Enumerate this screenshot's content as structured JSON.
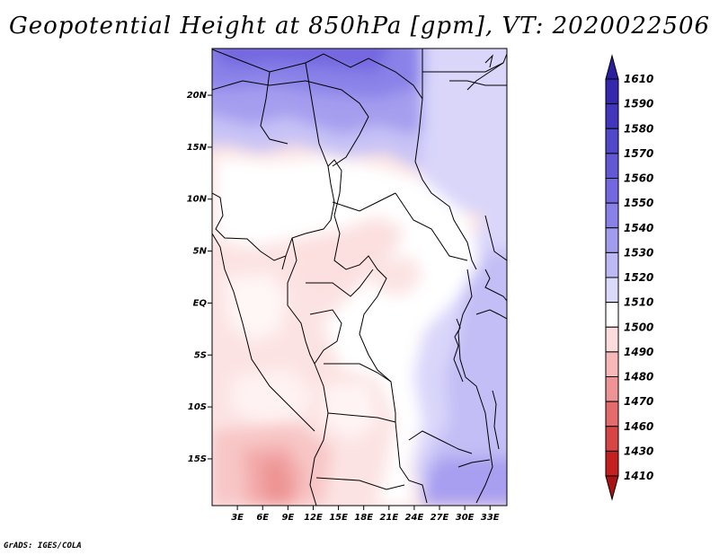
{
  "title": "Geopotential Height at 850hPa [gpm], VT: 2020022506",
  "credit": "GrADS: IGES/COLA",
  "map": {
    "lat_labels": [
      "20N",
      "15N",
      "10N",
      "5N",
      "EQ",
      "5S",
      "10S",
      "15S"
    ],
    "lat_values": [
      20,
      15,
      10,
      5,
      0,
      -5,
      -10,
      -15
    ],
    "lon_labels": [
      "3E",
      "6E",
      "9E",
      "12E",
      "15E",
      "18E",
      "21E",
      "24E",
      "27E",
      "30E",
      "33E"
    ],
    "lon_values": [
      3,
      6,
      9,
      12,
      15,
      18,
      21,
      24,
      27,
      30,
      33
    ],
    "lat_range": [
      -19.5,
      24.5
    ],
    "lon_range": [
      0,
      35
    ]
  },
  "legend": {
    "levels": [
      "1610",
      "1590",
      "1580",
      "1570",
      "1560",
      "1550",
      "1540",
      "1530",
      "1520",
      "1510",
      "1500",
      "1490",
      "1480",
      "1470",
      "1460",
      "1430",
      "1410"
    ],
    "colors": [
      "#2a1fa0",
      "#3528ae",
      "#4236bd",
      "#5147c9",
      "#6258d6",
      "#7468e0",
      "#8a81e8",
      "#a29cef",
      "#bdb9f5",
      "#dcdafa",
      "#ffffff",
      "#fcdcdc",
      "#f7b8b8",
      "#ee9494",
      "#e46b6b",
      "#d84545",
      "#c42020",
      "#a81414"
    ]
  }
}
